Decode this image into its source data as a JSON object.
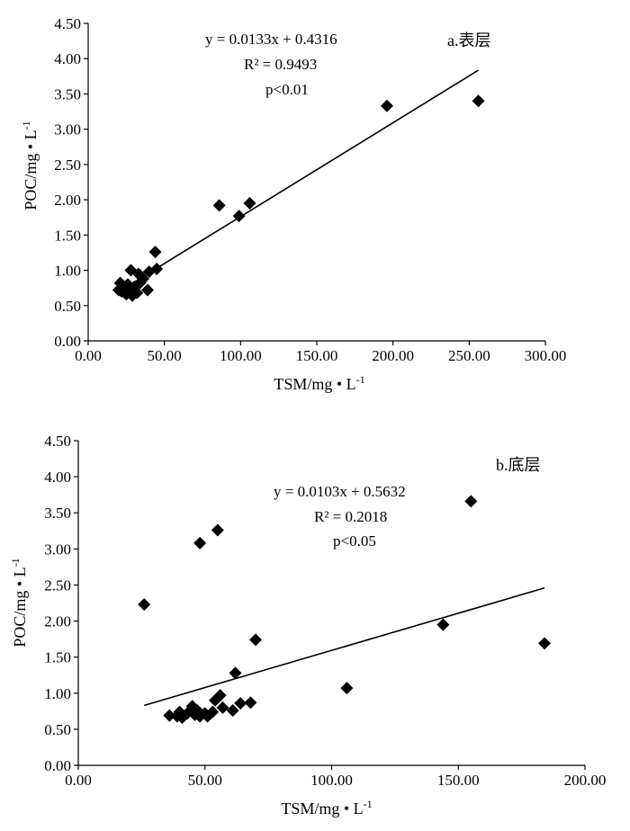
{
  "chart_data": [
    {
      "type": "scatter",
      "panel_label": "a.表层",
      "xlabel": "TSM/mg • L",
      "xlabel_sup": "-1",
      "ylabel": "POC/mg • L",
      "ylabel_sup": "-1",
      "xlim": [
        0,
        300
      ],
      "ylim": [
        0,
        4.5
      ],
      "x_ticks": [
        "0.00",
        "50.00",
        "100.00",
        "150.00",
        "200.00",
        "250.00",
        "300.00"
      ],
      "y_ticks": [
        "0.00",
        "0.50",
        "1.00",
        "1.50",
        "2.00",
        "2.50",
        "3.00",
        "3.50",
        "4.00",
        "4.50"
      ],
      "annotation": {
        "equation": "y = 0.0133x + 0.4316",
        "r2": "R² = 0.9493",
        "p": "p<0.01"
      },
      "fit": {
        "slope": 0.0133,
        "intercept": 0.4316,
        "x_range": [
          20,
          256
        ]
      },
      "points": [
        {
          "x": 20,
          "y": 0.72
        },
        {
          "x": 21,
          "y": 0.82
        },
        {
          "x": 22,
          "y": 0.7
        },
        {
          "x": 23,
          "y": 0.78
        },
        {
          "x": 24,
          "y": 0.74
        },
        {
          "x": 25,
          "y": 0.66
        },
        {
          "x": 26,
          "y": 0.8
        },
        {
          "x": 27,
          "y": 0.72
        },
        {
          "x": 28,
          "y": 0.68
        },
        {
          "x": 28,
          "y": 1.0
        },
        {
          "x": 29,
          "y": 0.64
        },
        {
          "x": 30,
          "y": 0.76
        },
        {
          "x": 31,
          "y": 0.7
        },
        {
          "x": 32,
          "y": 0.68
        },
        {
          "x": 33,
          "y": 0.95
        },
        {
          "x": 34,
          "y": 0.82
        },
        {
          "x": 36,
          "y": 0.88
        },
        {
          "x": 39,
          "y": 0.72
        },
        {
          "x": 40,
          "y": 0.98
        },
        {
          "x": 44,
          "y": 1.26
        },
        {
          "x": 45,
          "y": 1.02
        },
        {
          "x": 86,
          "y": 1.92
        },
        {
          "x": 99,
          "y": 1.77
        },
        {
          "x": 106,
          "y": 1.95
        },
        {
          "x": 196,
          "y": 3.33
        },
        {
          "x": 256,
          "y": 3.4
        }
      ]
    },
    {
      "type": "scatter",
      "panel_label": "b.底层",
      "xlabel": "TSM/mg • L",
      "xlabel_sup": "-1",
      "ylabel": "POC/mg • L",
      "ylabel_sup": "-1",
      "xlim": [
        0,
        200
      ],
      "ylim": [
        0,
        4.5
      ],
      "x_ticks": [
        "0.00",
        "50.00",
        "100.00",
        "150.00",
        "200.00"
      ],
      "y_ticks": [
        "0.00",
        "0.50",
        "1.00",
        "1.50",
        "2.00",
        "2.50",
        "3.00",
        "3.50",
        "4.00",
        "4.50"
      ],
      "annotation": {
        "equation": "y = 0.0103x + 0.5632",
        "r2": "R² = 0.2018",
        "p": "p<0.05"
      },
      "fit": {
        "slope": 0.0103,
        "intercept": 0.5632,
        "x_range": [
          26,
          184
        ]
      },
      "points": [
        {
          "x": 26,
          "y": 2.23
        },
        {
          "x": 36,
          "y": 0.69
        },
        {
          "x": 39,
          "y": 0.68
        },
        {
          "x": 40,
          "y": 0.74
        },
        {
          "x": 41,
          "y": 0.66
        },
        {
          "x": 43,
          "y": 0.72
        },
        {
          "x": 45,
          "y": 0.82
        },
        {
          "x": 46,
          "y": 0.7
        },
        {
          "x": 47,
          "y": 0.76
        },
        {
          "x": 48,
          "y": 0.68
        },
        {
          "x": 48,
          "y": 3.08
        },
        {
          "x": 50,
          "y": 0.72
        },
        {
          "x": 51,
          "y": 0.68
        },
        {
          "x": 53,
          "y": 0.74
        },
        {
          "x": 54,
          "y": 0.9
        },
        {
          "x": 55,
          "y": 3.26
        },
        {
          "x": 56,
          "y": 0.97
        },
        {
          "x": 57,
          "y": 0.8
        },
        {
          "x": 61,
          "y": 0.76
        },
        {
          "x": 62,
          "y": 1.28
        },
        {
          "x": 64,
          "y": 0.86
        },
        {
          "x": 68,
          "y": 0.87
        },
        {
          "x": 70,
          "y": 1.74
        },
        {
          "x": 106,
          "y": 1.07
        },
        {
          "x": 144,
          "y": 1.95
        },
        {
          "x": 155,
          "y": 3.66
        },
        {
          "x": 184,
          "y": 1.69
        }
      ]
    }
  ]
}
